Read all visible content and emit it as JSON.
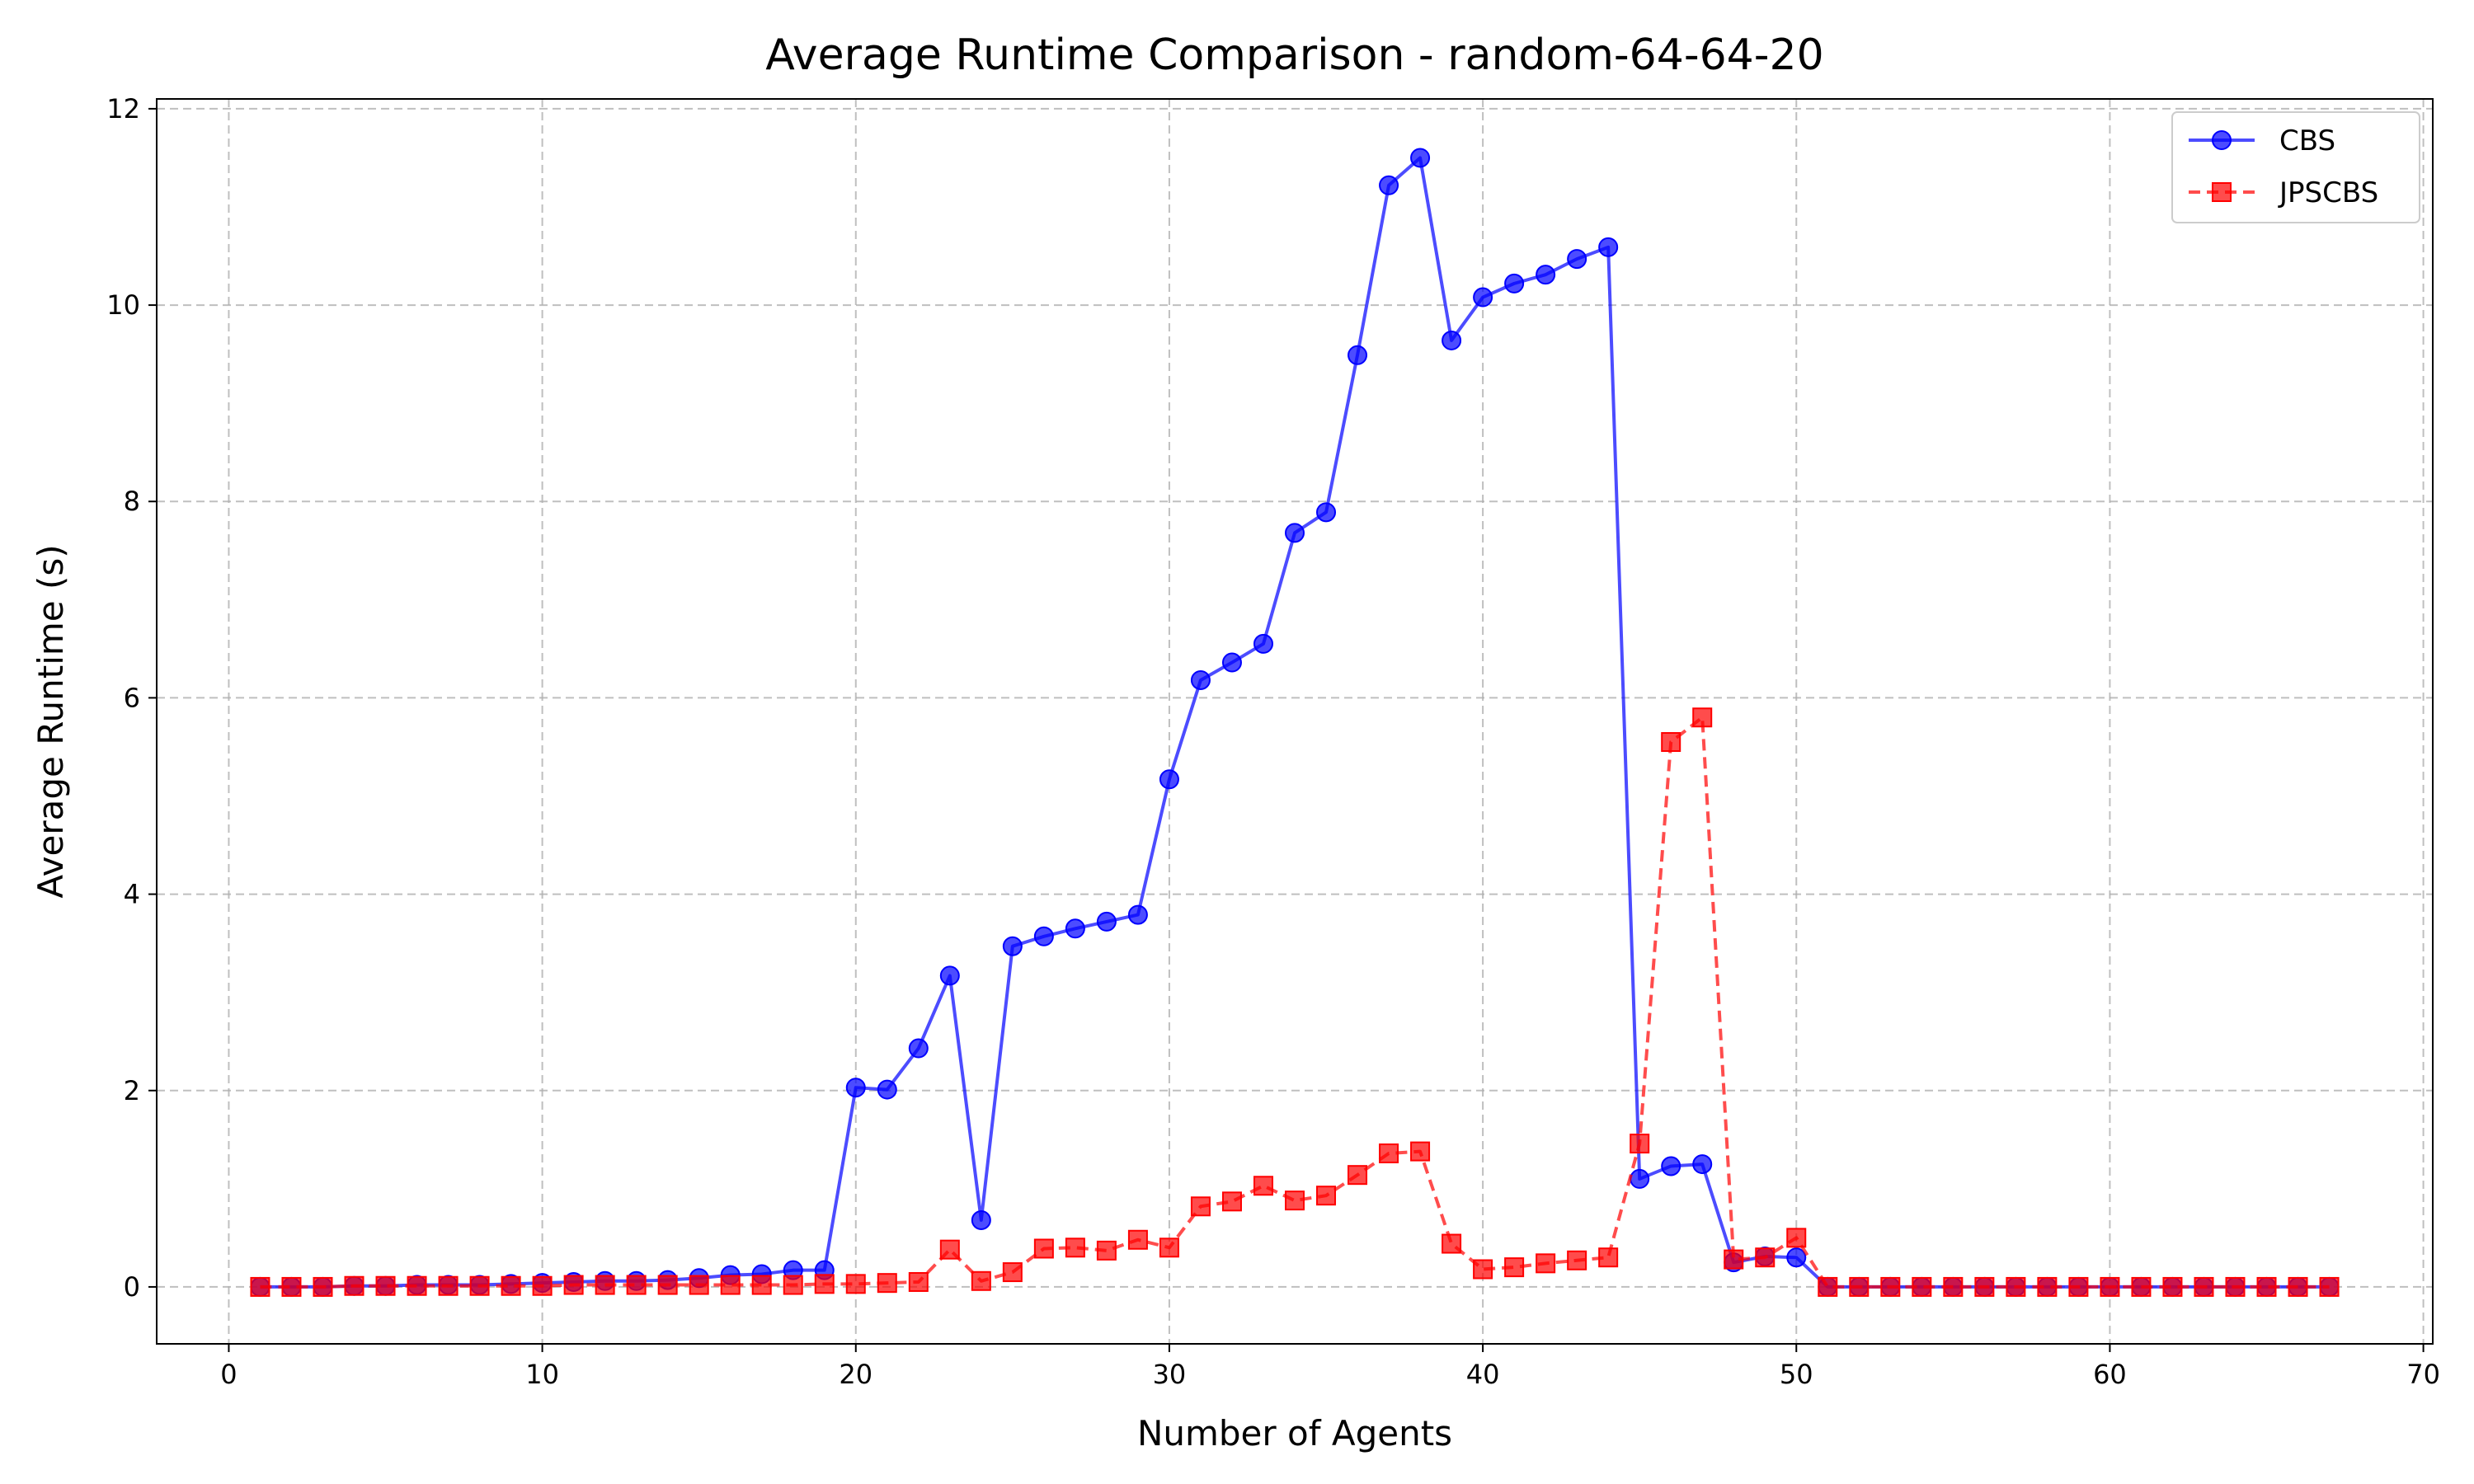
{
  "chart_data": {
    "type": "line",
    "title": "Average Runtime Comparison - random-64-64-20",
    "xlabel": "Number of Agents",
    "ylabel": "Average Runtime (s)",
    "xlim": [
      -2.3,
      70.3
    ],
    "ylim": [
      -0.58,
      12.1
    ],
    "xticks": [
      0,
      10,
      20,
      30,
      40,
      50,
      60,
      70
    ],
    "yticks": [
      0,
      2,
      4,
      6,
      8,
      10,
      12
    ],
    "grid": true,
    "legend_position": "top-right",
    "x": [
      1,
      2,
      3,
      4,
      5,
      6,
      7,
      8,
      9,
      10,
      11,
      12,
      13,
      14,
      15,
      16,
      17,
      18,
      19,
      20,
      21,
      22,
      23,
      24,
      25,
      26,
      27,
      28,
      29,
      30,
      31,
      32,
      33,
      34,
      35,
      36,
      37,
      38,
      39,
      40,
      41,
      42,
      43,
      44,
      45,
      46,
      47,
      48,
      49,
      50,
      51,
      52,
      53,
      54,
      55,
      56,
      57,
      58,
      59,
      60,
      61,
      62,
      63,
      64,
      65,
      66,
      67
    ],
    "series": [
      {
        "name": "CBS",
        "color": "#0000ff",
        "marker": "circle",
        "linestyle": "solid",
        "values": [
          0.0,
          0.0,
          0.0,
          0.01,
          0.01,
          0.02,
          0.02,
          0.02,
          0.03,
          0.04,
          0.05,
          0.06,
          0.06,
          0.07,
          0.09,
          0.12,
          0.13,
          0.17,
          0.17,
          2.03,
          2.01,
          2.43,
          3.17,
          0.68,
          3.47,
          3.57,
          3.65,
          3.72,
          3.79,
          5.17,
          6.18,
          6.36,
          6.55,
          7.68,
          7.89,
          9.49,
          11.22,
          11.5,
          9.64,
          10.08,
          10.22,
          10.31,
          10.47,
          10.59,
          1.1,
          1.23,
          1.25,
          0.25,
          0.31,
          0.3,
          0.0,
          0.0,
          0.0,
          0.0,
          0.0,
          0.0,
          0.0,
          0.0,
          0.0,
          0.0,
          0.0,
          0.0,
          0.0,
          0.0,
          0.0,
          0.0,
          0.0
        ]
      },
      {
        "name": "JPSCBS",
        "color": "#ff0000",
        "marker": "square",
        "linestyle": "dashed",
        "values": [
          0.0,
          0.0,
          0.0,
          0.01,
          0.01,
          0.01,
          0.01,
          0.01,
          0.01,
          0.01,
          0.02,
          0.02,
          0.02,
          0.02,
          0.02,
          0.02,
          0.02,
          0.02,
          0.03,
          0.03,
          0.04,
          0.05,
          0.38,
          0.06,
          0.15,
          0.39,
          0.4,
          0.37,
          0.48,
          0.4,
          0.82,
          0.87,
          1.03,
          0.88,
          0.93,
          1.14,
          1.36,
          1.38,
          0.44,
          0.18,
          0.2,
          0.24,
          0.27,
          0.3,
          1.46,
          5.55,
          5.8,
          0.28,
          0.3,
          0.5,
          0.0,
          0.0,
          0.0,
          0.0,
          0.0,
          0.0,
          0.0,
          0.0,
          0.0,
          0.0,
          0.0,
          0.0,
          0.0,
          0.0,
          0.0,
          0.0,
          0.0
        ]
      }
    ]
  }
}
